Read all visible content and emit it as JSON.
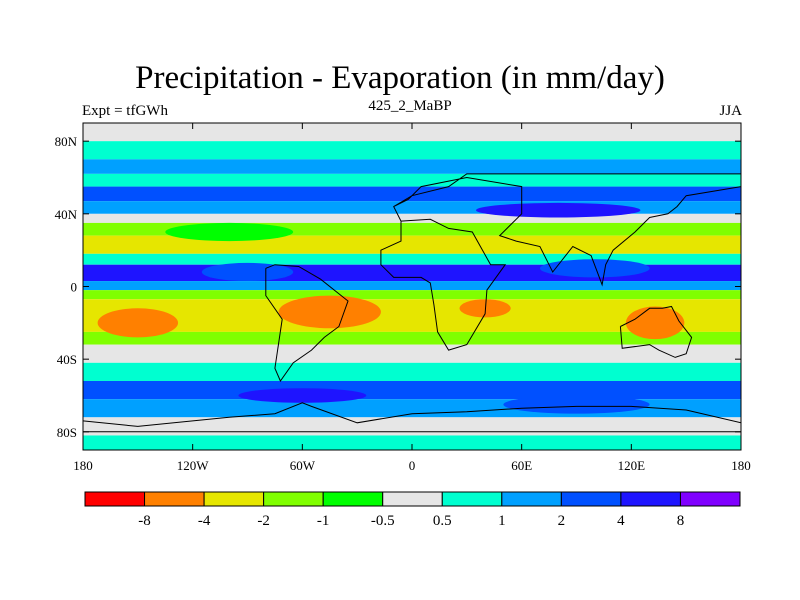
{
  "title": "Precipitation - Evaporation (in mm/day)",
  "subtitle_left": "Expt = tfGWh",
  "subtitle_center": "425_2_MaBP",
  "subtitle_right": "JJA",
  "y_ticks": [
    {
      "label": "80N",
      "lat": 80
    },
    {
      "label": "40N",
      "lat": 40
    },
    {
      "label": "0",
      "lat": 0
    },
    {
      "label": "40S",
      "lat": -40
    },
    {
      "label": "80S",
      "lat": -80
    }
  ],
  "x_ticks": [
    {
      "label": "180",
      "lon": -180
    },
    {
      "label": "120W",
      "lon": -120
    },
    {
      "label": "60W",
      "lon": -60
    },
    {
      "label": "0",
      "lon": 0
    },
    {
      "label": "60E",
      "lon": 60
    },
    {
      "label": "120E",
      "lon": 120
    },
    {
      "label": "180",
      "lon": 180
    }
  ],
  "colorbar": {
    "colors": [
      "#ff0000",
      "#ff8000",
      "#e6e600",
      "#80ff00",
      "#00ff00",
      "#e6e6e6",
      "#00ffd0",
      "#00a0ff",
      "#0050ff",
      "#1e14ff",
      "#8000ff"
    ],
    "labels": [
      "-8",
      "-4",
      "-2",
      "-1",
      "-0.5",
      "0.5",
      "1",
      "2",
      "4",
      "8"
    ]
  },
  "bands": [
    {
      "lat": [
        80,
        90
      ],
      "color": "#e6e6e6"
    },
    {
      "lat": [
        70,
        80
      ],
      "color": "#00ffd0"
    },
    {
      "lat": [
        62,
        70
      ],
      "color": "#00a0ff"
    },
    {
      "lat": [
        55,
        62
      ],
      "color": "#00ffd0"
    },
    {
      "lat": [
        47,
        55
      ],
      "color": "#0050ff"
    },
    {
      "lat": [
        40,
        47
      ],
      "color": "#00a0ff"
    },
    {
      "lat": [
        35,
        40
      ],
      "color": "#e6e6e6"
    },
    {
      "lat": [
        28,
        35
      ],
      "color": "#80ff00"
    },
    {
      "lat": [
        18,
        28
      ],
      "color": "#e6e600"
    },
    {
      "lat": [
        12,
        18
      ],
      "color": "#00ffd0"
    },
    {
      "lat": [
        3,
        12
      ],
      "color": "#1e14ff"
    },
    {
      "lat": [
        -2,
        3
      ],
      "color": "#00a0ff"
    },
    {
      "lat": [
        -7,
        -2
      ],
      "color": "#80ff00"
    },
    {
      "lat": [
        -25,
        -7
      ],
      "color": "#e6e600"
    },
    {
      "lat": [
        -32,
        -25
      ],
      "color": "#80ff00"
    },
    {
      "lat": [
        -42,
        -32
      ],
      "color": "#e6e6e6"
    },
    {
      "lat": [
        -52,
        -42
      ],
      "color": "#00ffd0"
    },
    {
      "lat": [
        -62,
        -52
      ],
      "color": "#0050ff"
    },
    {
      "lat": [
        -72,
        -62
      ],
      "color": "#00a0ff"
    },
    {
      "lat": [
        -82,
        -72
      ],
      "color": "#e6e6e6"
    },
    {
      "lat": [
        -90,
        -82
      ],
      "color": "#00ffd0"
    }
  ],
  "blobs": [
    {
      "lon": -150,
      "lat": -20,
      "rlon": 22,
      "rlat": 8,
      "color": "#ff8000"
    },
    {
      "lon": -45,
      "lat": -14,
      "rlon": 28,
      "rlat": 9,
      "color": "#ff8000"
    },
    {
      "lon": 40,
      "lat": -12,
      "rlon": 14,
      "rlat": 5,
      "color": "#ff8000"
    },
    {
      "lon": 133,
      "lat": -20,
      "rlon": 16,
      "rlat": 9,
      "color": "#ff8000"
    },
    {
      "lon": -90,
      "lat": 8,
      "rlon": 25,
      "rlat": 5,
      "color": "#0050ff"
    },
    {
      "lon": 100,
      "lat": 10,
      "rlon": 30,
      "rlat": 5,
      "color": "#0050ff"
    },
    {
      "lon": -100,
      "lat": 30,
      "rlon": 35,
      "rlat": 5,
      "color": "#00ff00"
    },
    {
      "lon": 80,
      "lat": 42,
      "rlon": 45,
      "rlat": 4,
      "color": "#1e14ff"
    },
    {
      "lon": -60,
      "lat": -60,
      "rlon": 35,
      "rlat": 4,
      "color": "#1e14ff"
    },
    {
      "lon": 90,
      "lat": -65,
      "rlon": 40,
      "rlat": 5,
      "color": "#0050ff"
    }
  ],
  "continents": [
    [
      [
        -6,
        36
      ],
      [
        -6,
        25
      ],
      [
        -17,
        20
      ],
      [
        -17,
        12
      ],
      [
        -10,
        5
      ],
      [
        5,
        5
      ],
      [
        10,
        2
      ],
      [
        12,
        -10
      ],
      [
        14,
        -25
      ],
      [
        20,
        -35
      ],
      [
        30,
        -32
      ],
      [
        40,
        -15
      ],
      [
        41,
        -2
      ],
      [
        51,
        12
      ],
      [
        43,
        12
      ],
      [
        33,
        30
      ],
      [
        20,
        32
      ],
      [
        10,
        37
      ],
      [
        -6,
        36
      ]
    ],
    [
      [
        -6,
        36
      ],
      [
        -10,
        44
      ],
      [
        -2,
        48
      ],
      [
        5,
        55
      ],
      [
        30,
        60
      ],
      [
        60,
        55
      ],
      [
        60,
        40
      ],
      [
        48,
        28
      ],
      [
        57,
        25
      ],
      [
        70,
        22
      ],
      [
        77,
        8
      ],
      [
        88,
        22
      ],
      [
        98,
        17
      ],
      [
        104,
        1
      ],
      [
        106,
        12
      ],
      [
        110,
        20
      ],
      [
        122,
        30
      ],
      [
        130,
        38
      ],
      [
        140,
        40
      ],
      [
        145,
        44
      ],
      [
        150,
        50
      ],
      [
        180,
        55
      ],
      [
        180,
        62
      ],
      [
        60,
        62
      ],
      [
        30,
        62
      ],
      [
        20,
        55
      ],
      [
        0,
        50
      ],
      [
        -10,
        44
      ]
    ],
    [
      [
        -80,
        10
      ],
      [
        -75,
        12
      ],
      [
        -62,
        11
      ],
      [
        -50,
        4
      ],
      [
        -35,
        -8
      ],
      [
        -40,
        -22
      ],
      [
        -48,
        -28
      ],
      [
        -55,
        -35
      ],
      [
        -65,
        -42
      ],
      [
        -72,
        -52
      ],
      [
        -75,
        -45
      ],
      [
        -71,
        -18
      ],
      [
        -80,
        -5
      ],
      [
        -80,
        10
      ]
    ],
    [
      [
        114,
        -22
      ],
      [
        122,
        -18
      ],
      [
        130,
        -12
      ],
      [
        137,
        -12
      ],
      [
        142,
        -11
      ],
      [
        146,
        -19
      ],
      [
        153,
        -28
      ],
      [
        150,
        -37
      ],
      [
        144,
        -39
      ],
      [
        135,
        -35
      ],
      [
        130,
        -32
      ],
      [
        115,
        -34
      ],
      [
        114,
        -22
      ]
    ],
    [
      [
        -180,
        -74
      ],
      [
        -150,
        -77
      ],
      [
        -120,
        -74
      ],
      [
        -100,
        -72
      ],
      [
        -75,
        -70
      ],
      [
        -60,
        -64
      ],
      [
        -55,
        -66
      ],
      [
        -30,
        -75
      ],
      [
        0,
        -70
      ],
      [
        30,
        -69
      ],
      [
        60,
        -67
      ],
      [
        90,
        -66
      ],
      [
        120,
        -66
      ],
      [
        150,
        -68
      ],
      [
        180,
        -75
      ],
      [
        180,
        -80
      ],
      [
        -180,
        -80
      ]
    ]
  ]
}
